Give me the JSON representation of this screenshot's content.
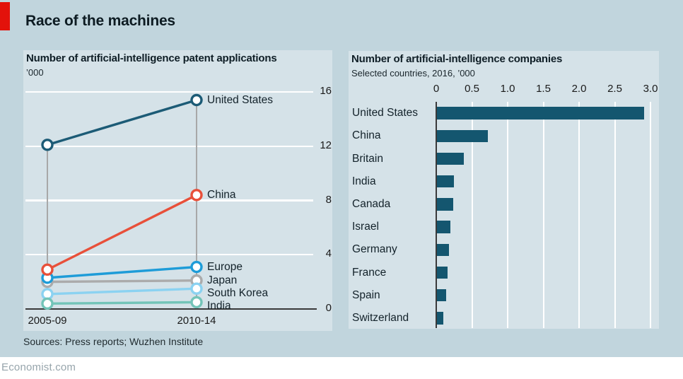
{
  "header": {
    "title": "Race of the machines"
  },
  "footer": {
    "sources": "Sources: Press reports; Wuzhen Institute",
    "site": "Economist.com"
  },
  "colors": {
    "background": "#c1d5dd",
    "panel_background": "#d5e2e8",
    "brand_red": "#e3120b",
    "bar_color": "#14566f",
    "gridline": "#ffffff",
    "drop_line": "#a8a8a8",
    "axis": "#3a3a3a"
  },
  "chart_data": [
    {
      "type": "line",
      "title": "Number of artificial-intelligence patent applications",
      "subtitle": "’000",
      "x": [
        "2005-09",
        "2010-14"
      ],
      "series": [
        {
          "name": "United States",
          "values": [
            12.1,
            15.4
          ],
          "color": "#1c5b76"
        },
        {
          "name": "China",
          "values": [
            2.9,
            8.4
          ],
          "color": "#e8503a"
        },
        {
          "name": "Europe",
          "values": [
            2.3,
            3.1
          ],
          "color": "#1e9cd8"
        },
        {
          "name": "Japan",
          "values": [
            2.0,
            2.1
          ],
          "color": "#ababab"
        },
        {
          "name": "South Korea",
          "values": [
            1.1,
            1.5
          ],
          "color": "#8bd2f1"
        },
        {
          "name": "India",
          "values": [
            0.4,
            0.5
          ],
          "color": "#73c4b8"
        }
      ],
      "ylim": [
        0,
        16
      ],
      "yticks": [
        0,
        4,
        8,
        12,
        16
      ],
      "grid": "horizontal-white",
      "legend_position": "right-of-line-ends"
    },
    {
      "type": "bar",
      "orientation": "horizontal",
      "title": "Number of artificial-intelligence companies",
      "subtitle": "Selected countries, 2016, ’000",
      "categories": [
        "United States",
        "China",
        "Britain",
        "India",
        "Canada",
        "Israel",
        "Germany",
        "France",
        "Spain",
        "Switzerland"
      ],
      "values": [
        2.9,
        0.71,
        0.38,
        0.24,
        0.23,
        0.19,
        0.17,
        0.15,
        0.13,
        0.09
      ],
      "xlim": [
        0,
        3.0
      ],
      "xticks": [
        "0",
        "0.5",
        "1.0",
        "1.5",
        "2.0",
        "2.5",
        "3.0"
      ],
      "grid": "vertical-white",
      "axis_position": "top"
    }
  ]
}
